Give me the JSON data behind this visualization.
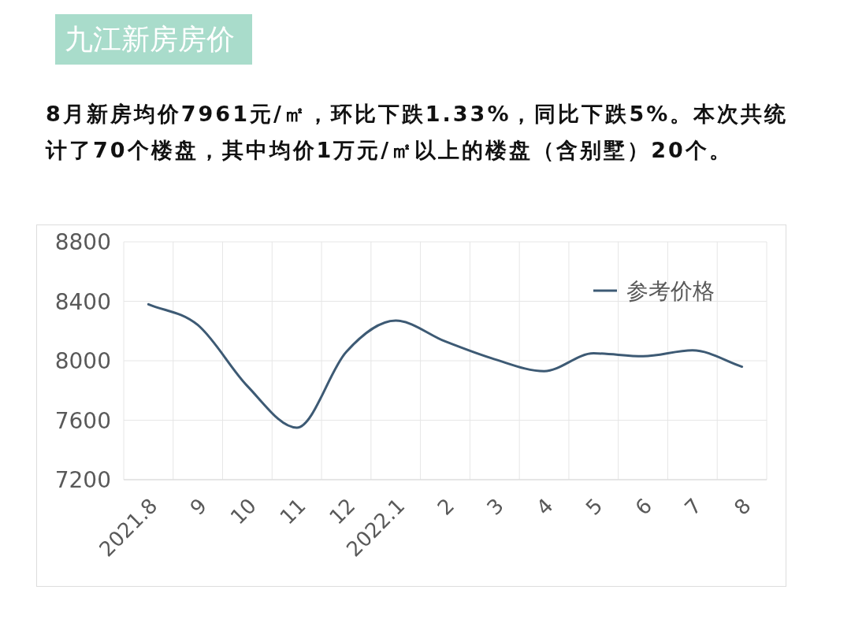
{
  "chart_data": {
    "type": "line",
    "title": "九江新房房价",
    "subtitle": "8月新房均价7961元/㎡，环比下跌1.33%，同比下跌5%。本次共统计了70个楼盘，其中均价1万元/㎡以上的楼盘（含别墅）20个。",
    "categories": [
      "2021.8",
      "9",
      "10",
      "11",
      "12",
      "2022.1",
      "2",
      "3",
      "4",
      "5",
      "6",
      "7",
      "8"
    ],
    "series": [
      {
        "name": "参考价格",
        "color": "#3d5a74",
        "values": [
          8380,
          8240,
          7830,
          7550,
          8060,
          8270,
          8130,
          8010,
          7930,
          8050,
          8030,
          8070,
          7960
        ]
      }
    ],
    "ylim": [
      7200,
      8800
    ],
    "yticks": [
      7200,
      7600,
      8000,
      8400,
      8800
    ],
    "grid": true,
    "legend": "top right",
    "line_style": "solid"
  }
}
